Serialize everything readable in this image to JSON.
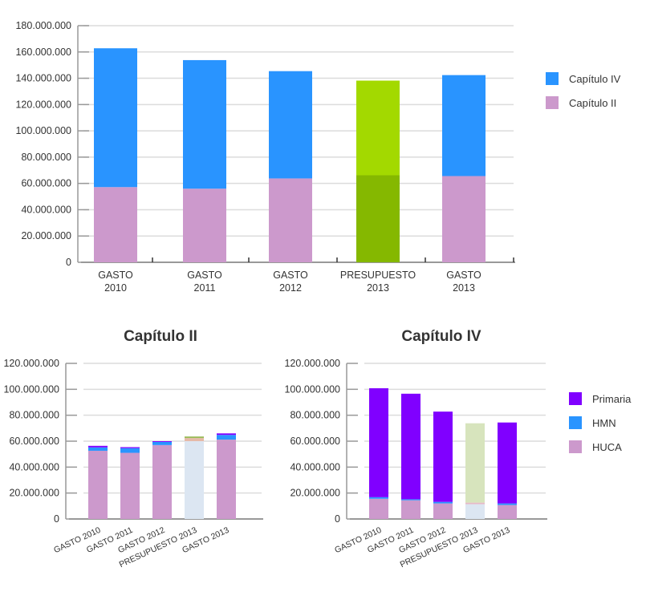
{
  "chart_data": [
    {
      "type": "bar",
      "stacked": true,
      "title": "",
      "categories": [
        "GASTO 2010",
        "GASTO 2011",
        "GASTO 2012",
        "PRESUPUESTO 2013",
        "GASTO 2013"
      ],
      "ylim": [
        0,
        180000000
      ],
      "yticks": [
        "0",
        "20.000.000",
        "40.000.000",
        "60.000.000",
        "80.000.000",
        "100.000.000",
        "120.000.000",
        "140.000.000",
        "160.000.000",
        "180.000.000"
      ],
      "grid": true,
      "legend_position": "right",
      "series": [
        {
          "name": "Capítulo II",
          "color": "#cc99cc",
          "highlight_color": "#85b800",
          "values": [
            57200000,
            56000000,
            63800000,
            66200000,
            65600000
          ]
        },
        {
          "name": "Capítulo IV",
          "color": "#2994ff",
          "highlight_color": "#a3d900",
          "values": [
            105600000,
            97800000,
            81600000,
            72000000,
            76800000
          ]
        }
      ],
      "legend": [
        "Capítulo IV",
        "Capítulo II"
      ],
      "highlighted_category": "PRESUPUESTO 2013"
    },
    {
      "type": "bar",
      "stacked": true,
      "title": "Capítulo II",
      "categories": [
        "GASTO 2010",
        "GASTO 2011",
        "GASTO 2012",
        "PRESUPUESTO 2013",
        "GASTO 2013"
      ],
      "ylim": [
        0,
        120000000
      ],
      "yticks": [
        "0",
        "20.000.000",
        "40.000.000",
        "60.000.000",
        "80.000.000",
        "100.000.000",
        "120.000.000"
      ],
      "grid": true,
      "series": [
        {
          "name": "HUCA",
          "color": "#cc99cc",
          "highlight_color": "#dce6f2",
          "values": [
            52600000,
            51000000,
            57000000,
            60000000,
            61200000
          ]
        },
        {
          "name": "HMN",
          "color": "#2994ff",
          "highlight_color": "#e6b9a8",
          "values": [
            2600000,
            3600000,
            2400000,
            2400000,
            3600000
          ]
        },
        {
          "name": "Primaria",
          "color": "#8000ff",
          "highlight_color": "#9bbb59",
          "values": [
            1200000,
            800000,
            600000,
            1200000,
            1200000
          ]
        }
      ],
      "highlighted_category": "PRESUPUESTO 2013"
    },
    {
      "type": "bar",
      "stacked": true,
      "title": "Capítulo IV",
      "categories": [
        "GASTO 2010",
        "GASTO 2011",
        "GASTO 2012",
        "PRESUPUESTO 2013",
        "GASTO 2013"
      ],
      "ylim": [
        0,
        120000000
      ],
      "yticks": [
        "0",
        "20.000.000",
        "40.000.000",
        "60.000.000",
        "80.000.000",
        "100.000.000",
        "120.000.000"
      ],
      "grid": true,
      "legend_position": "right",
      "series": [
        {
          "name": "HUCA",
          "color": "#cc99cc",
          "highlight_color": "#dce6f2",
          "values": [
            15600000,
            14400000,
            12000000,
            11400000,
            10800000
          ]
        },
        {
          "name": "HMN",
          "color": "#2994ff",
          "highlight_color": "#e6b9c8",
          "values": [
            1200000,
            800000,
            1200000,
            1200000,
            1200000
          ]
        },
        {
          "name": "Primaria",
          "color": "#8000ff",
          "highlight_color": "#d7e4bd",
          "values": [
            84000000,
            81400000,
            69600000,
            61200000,
            62400000
          ]
        }
      ],
      "legend": [
        "Primaria",
        "HMN",
        "HUCA"
      ],
      "highlighted_category": "PRESUPUESTO 2013"
    }
  ]
}
